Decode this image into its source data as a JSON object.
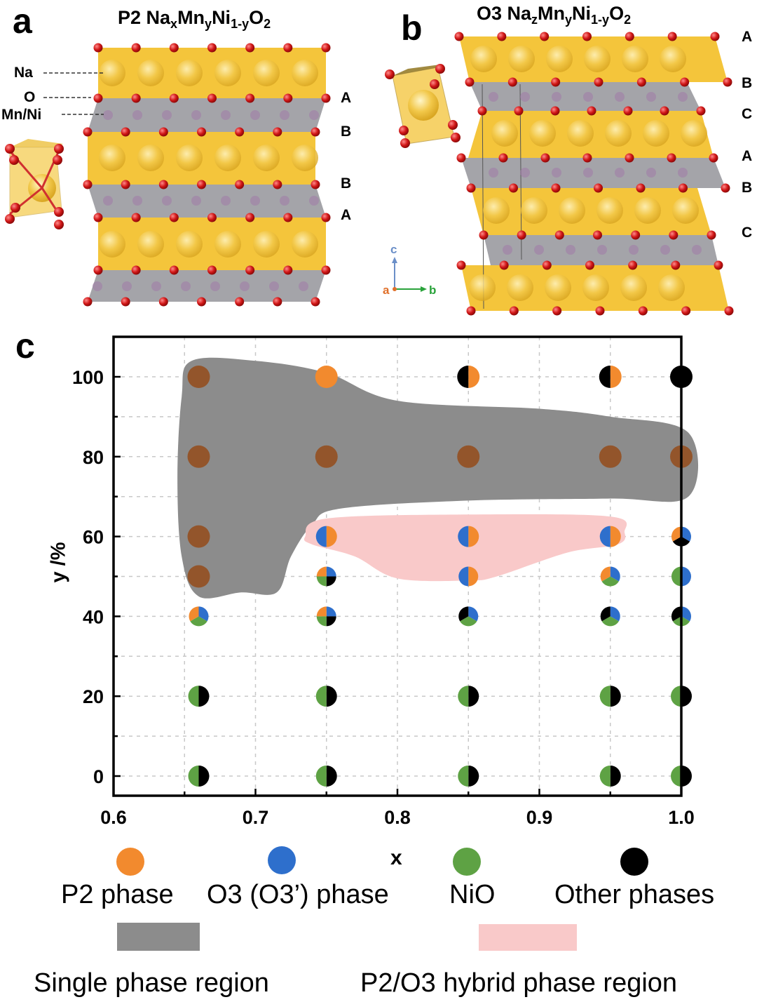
{
  "panel_a": {
    "letter": "a",
    "title": {
      "base": "P2 Na",
      "sub1": "x",
      "mid1": "Mn",
      "sub2": "y",
      "mid2": "Ni",
      "sub3": "1-y",
      "mid3": "O",
      "sub4": "2"
    },
    "atom_labels": [
      "Na",
      "O",
      "Mn/Ni"
    ],
    "stacking": [
      "A",
      "B",
      "B",
      "A"
    ]
  },
  "panel_b": {
    "letter": "b",
    "title": {
      "base": "O3 Na",
      "sub1": "z",
      "mid1": "Mn",
      "sub2": "y",
      "mid2": "Ni",
      "sub3": "1-y",
      "mid3": "O",
      "sub4": "2"
    },
    "stacking": [
      "A",
      "B",
      "C",
      "A",
      "B",
      "C"
    ],
    "axes": {
      "c": "c",
      "a": "a",
      "b": "b"
    }
  },
  "panel_c": {
    "letter": "c",
    "legend": {
      "p2": "P2 phase",
      "o3": "O3 (O3’) phase",
      "nio": "NiO",
      "other": "Other phases",
      "single": "Single phase region",
      "hybrid": "P2/O3 hybrid phase region"
    }
  },
  "colors": {
    "p2": "#f28a2e",
    "o3": "#2e6fcc",
    "nio": "#5ea244",
    "other": "#000000",
    "single_point": "#93552b",
    "single_region": "#8c8c8c",
    "hybrid_region": "#f9c9c9",
    "na_layer": "#f3c02a",
    "tm_layer": "#9a9aa0",
    "oxygen": "#d01616"
  },
  "chart_data": {
    "type": "scatter",
    "title": "",
    "xlabel": "x",
    "ylabel": "y /%",
    "xlim": [
      0.6,
      1.0
    ],
    "ylim": [
      -5,
      110
    ],
    "xticks": [
      "0.6",
      "0.7",
      "0.8",
      "0.9",
      "1.0"
    ],
    "yticks": [
      "0",
      "20",
      "40",
      "60",
      "80",
      "100"
    ],
    "grid": true,
    "legend": "bottom",
    "points": [
      {
        "x": 0.66,
        "y": 100,
        "phases": [
          "single"
        ]
      },
      {
        "x": 0.75,
        "y": 100,
        "phases": [
          "p2"
        ]
      },
      {
        "x": 0.85,
        "y": 100,
        "phases": [
          "p2",
          "other"
        ]
      },
      {
        "x": 0.95,
        "y": 100,
        "phases": [
          "p2",
          "other"
        ]
      },
      {
        "x": 1.0,
        "y": 100,
        "phases": [
          "other"
        ]
      },
      {
        "x": 0.66,
        "y": 80,
        "phases": [
          "single"
        ]
      },
      {
        "x": 0.75,
        "y": 80,
        "phases": [
          "single"
        ]
      },
      {
        "x": 0.85,
        "y": 80,
        "phases": [
          "single"
        ]
      },
      {
        "x": 0.95,
        "y": 80,
        "phases": [
          "single"
        ]
      },
      {
        "x": 1.0,
        "y": 80,
        "phases": [
          "single"
        ]
      },
      {
        "x": 0.66,
        "y": 60,
        "phases": [
          "single"
        ]
      },
      {
        "x": 0.75,
        "y": 60,
        "phases": [
          "p2",
          "o3"
        ]
      },
      {
        "x": 0.85,
        "y": 60,
        "phases": [
          "p2",
          "o3"
        ]
      },
      {
        "x": 0.95,
        "y": 60,
        "phases": [
          "p2",
          "o3"
        ]
      },
      {
        "x": 1.0,
        "y": 60,
        "phases": [
          "o3",
          "other",
          "p2"
        ]
      },
      {
        "x": 0.66,
        "y": 50,
        "phases": [
          "single"
        ]
      },
      {
        "x": 0.75,
        "y": 50,
        "phases": [
          "o3",
          "other",
          "nio",
          "p2"
        ]
      },
      {
        "x": 0.85,
        "y": 50,
        "phases": [
          "p2",
          "o3"
        ]
      },
      {
        "x": 0.95,
        "y": 50,
        "phases": [
          "o3",
          "nio",
          "p2"
        ]
      },
      {
        "x": 1.0,
        "y": 50,
        "phases": [
          "o3",
          "nio"
        ]
      },
      {
        "x": 0.66,
        "y": 40,
        "phases": [
          "o3",
          "nio",
          "p2"
        ]
      },
      {
        "x": 0.75,
        "y": 40,
        "phases": [
          "o3",
          "other",
          "nio",
          "p2"
        ]
      },
      {
        "x": 0.85,
        "y": 40,
        "phases": [
          "o3",
          "nio",
          "other"
        ]
      },
      {
        "x": 0.95,
        "y": 40,
        "phases": [
          "o3",
          "nio",
          "other"
        ]
      },
      {
        "x": 1.0,
        "y": 40,
        "phases": [
          "o3",
          "nio",
          "other"
        ]
      },
      {
        "x": 0.66,
        "y": 20,
        "phases": [
          "other",
          "nio"
        ]
      },
      {
        "x": 0.75,
        "y": 20,
        "phases": [
          "other",
          "nio"
        ]
      },
      {
        "x": 0.85,
        "y": 20,
        "phases": [
          "other",
          "nio"
        ]
      },
      {
        "x": 0.95,
        "y": 20,
        "phases": [
          "other",
          "nio"
        ]
      },
      {
        "x": 1.0,
        "y": 20,
        "phases": [
          "other",
          "nio"
        ]
      },
      {
        "x": 0.66,
        "y": 0,
        "phases": [
          "other",
          "nio"
        ]
      },
      {
        "x": 0.75,
        "y": 0,
        "phases": [
          "other",
          "nio"
        ]
      },
      {
        "x": 0.85,
        "y": 0,
        "phases": [
          "other",
          "nio"
        ]
      },
      {
        "x": 0.95,
        "y": 0,
        "phases": [
          "other",
          "nio"
        ]
      },
      {
        "x": 1.0,
        "y": 0,
        "phases": [
          "other",
          "nio"
        ]
      }
    ],
    "single_phase_region": [
      [
        0.655,
        104
      ],
      [
        0.7,
        104
      ],
      [
        0.75,
        101
      ],
      [
        0.8,
        94
      ],
      [
        0.9,
        92
      ],
      [
        0.95,
        90
      ],
      [
        1.005,
        86
      ],
      [
        1.005,
        70
      ],
      [
        0.95,
        69.5
      ],
      [
        0.85,
        69
      ],
      [
        0.76,
        67
      ],
      [
        0.74,
        63
      ],
      [
        0.725,
        55
      ],
      [
        0.715,
        46
      ],
      [
        0.69,
        46
      ],
      [
        0.66,
        45
      ],
      [
        0.648,
        55
      ],
      [
        0.645,
        75
      ],
      [
        0.648,
        95
      ]
    ],
    "hybrid_phase_region": [
      [
        0.735,
        60
      ],
      [
        0.75,
        64.5
      ],
      [
        0.85,
        65.5
      ],
      [
        0.95,
        65
      ],
      [
        0.96,
        61
      ],
      [
        0.955,
        58
      ],
      [
        0.92,
        56
      ],
      [
        0.87,
        50
      ],
      [
        0.85,
        49
      ],
      [
        0.8,
        49.5
      ],
      [
        0.77,
        55
      ],
      [
        0.74,
        58
      ]
    ]
  }
}
